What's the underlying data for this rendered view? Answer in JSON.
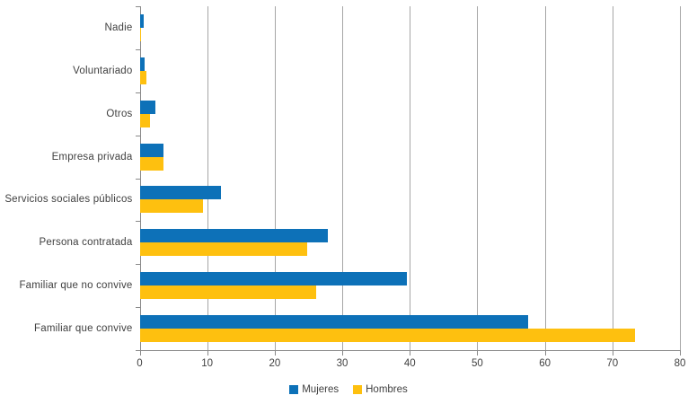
{
  "chart_data": {
    "type": "bar",
    "orientation": "horizontal",
    "title": "",
    "xlabel": "",
    "ylabel": "",
    "categories_top_to_bottom": [
      "Nadie",
      "Voluntariado",
      "Otros",
      "Empresa privada",
      "Servicios sociales  públicos",
      "Persona contratada",
      "Familiar que no convive",
      "Familiar que convive"
    ],
    "series": [
      {
        "name": "Mujeres",
        "color": "#0d71b8",
        "values": [
          0.5,
          0.6,
          2.2,
          3.4,
          12.0,
          27.8,
          39.5,
          57.5
        ]
      },
      {
        "name": "Hombres",
        "color": "#fec00f",
        "values": [
          0.1,
          0.9,
          1.4,
          3.4,
          9.3,
          24.8,
          26.1,
          73.3
        ]
      }
    ],
    "x_axis": {
      "min": 0,
      "max": 80,
      "tick_interval": 10,
      "tick_labels": [
        "0",
        "10",
        "20",
        "30",
        "40",
        "50",
        "60",
        "70",
        "80"
      ]
    },
    "grid": true,
    "gridline_color": "#a6a6a6",
    "axis_color": "#898989",
    "text_color": "#404040",
    "legend_position": "bottom-center",
    "background_color": "#ffffff"
  }
}
